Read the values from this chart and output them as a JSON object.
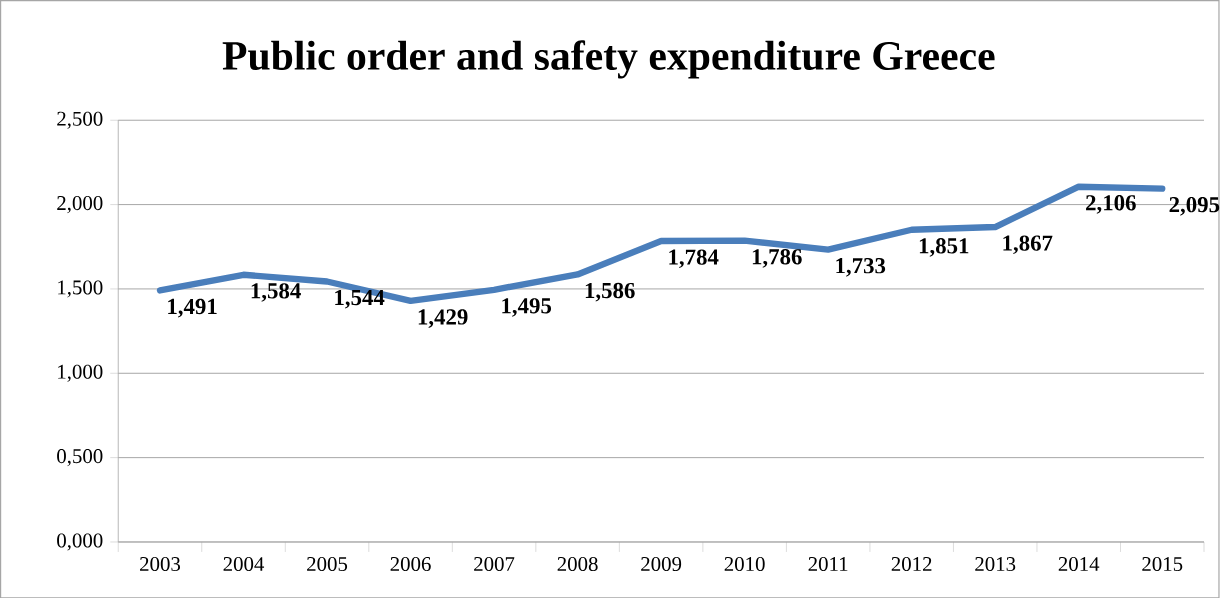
{
  "chart_data": {
    "type": "line",
    "title": "Public order and safety expenditure Greece",
    "categories": [
      "2003",
      "2004",
      "2005",
      "2006",
      "2007",
      "2008",
      "2009",
      "2010",
      "2011",
      "2012",
      "2013",
      "2014",
      "2015"
    ],
    "series": [
      {
        "color": "#4a7ebb",
        "values": [
          1.491,
          1.584,
          1.544,
          1.429,
          1.495,
          1.586,
          1.784,
          1.786,
          1.733,
          1.851,
          1.867,
          2.106,
          2.095
        ],
        "value_labels": [
          "1,491",
          "1,584",
          "1,544",
          "1,429",
          "1,495",
          "1,586",
          "1,784",
          "1,786",
          "1,733",
          "1,851",
          "1,867",
          "2,106",
          "2,095"
        ]
      }
    ],
    "ylim": [
      0,
      2.5
    ],
    "yticks": [
      {
        "value": 0,
        "label": "0,000"
      },
      {
        "value": 0.5,
        "label": "0,500"
      },
      {
        "value": 1,
        "label": "1,000"
      },
      {
        "value": 1.5,
        "label": "1,500"
      },
      {
        "value": 2,
        "label": "2,000"
      },
      {
        "value": 2.5,
        "label": "2,500"
      }
    ],
    "grid": "y"
  }
}
